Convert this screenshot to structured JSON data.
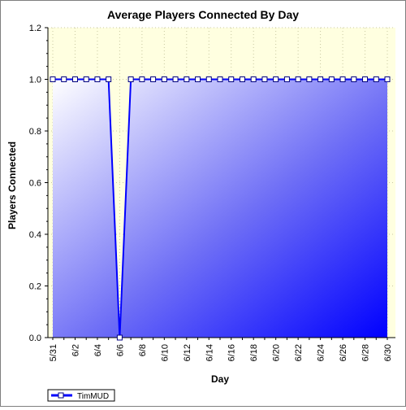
{
  "chart_data": {
    "type": "area",
    "title": "Average Players Connected By Day",
    "xlabel": "Day",
    "ylabel": "Players Connected",
    "ylim": [
      0,
      1.2
    ],
    "y_ticks": [
      "0.0",
      "0.2",
      "0.4",
      "0.6",
      "0.8",
      "1.0",
      "1.2"
    ],
    "x_tick_labels": [
      "5/31",
      "6/2",
      "6/4",
      "6/6",
      "6/8",
      "6/10",
      "6/12",
      "6/14",
      "6/16",
      "6/18",
      "6/20",
      "6/22",
      "6/24",
      "6/26",
      "6/28",
      "6/30"
    ],
    "grid": true,
    "legend_position": "bottom-left",
    "x": [
      "5/31",
      "6/1",
      "6/2",
      "6/3",
      "6/4",
      "6/5",
      "6/6",
      "6/7",
      "6/8",
      "6/9",
      "6/10",
      "6/11",
      "6/12",
      "6/13",
      "6/14",
      "6/15",
      "6/16",
      "6/17",
      "6/18",
      "6/19",
      "6/20",
      "6/21",
      "6/22",
      "6/23",
      "6/24",
      "6/25",
      "6/26",
      "6/27",
      "6/28",
      "6/29",
      "6/30"
    ],
    "series": [
      {
        "name": "TimMUD",
        "values": [
          1,
          1,
          1,
          1,
          1,
          1,
          0,
          1,
          1,
          1,
          1,
          1,
          1,
          1,
          1,
          1,
          1,
          1,
          1,
          1,
          1,
          1,
          1,
          1,
          1,
          1,
          1,
          1,
          1,
          1,
          1
        ],
        "color": "#0000ff"
      }
    ],
    "colors": {
      "plot_background": "#ffffe0",
      "area_light": "#ffffff",
      "area_dark": "#0000ff",
      "grid": "#c8c8a0"
    }
  }
}
